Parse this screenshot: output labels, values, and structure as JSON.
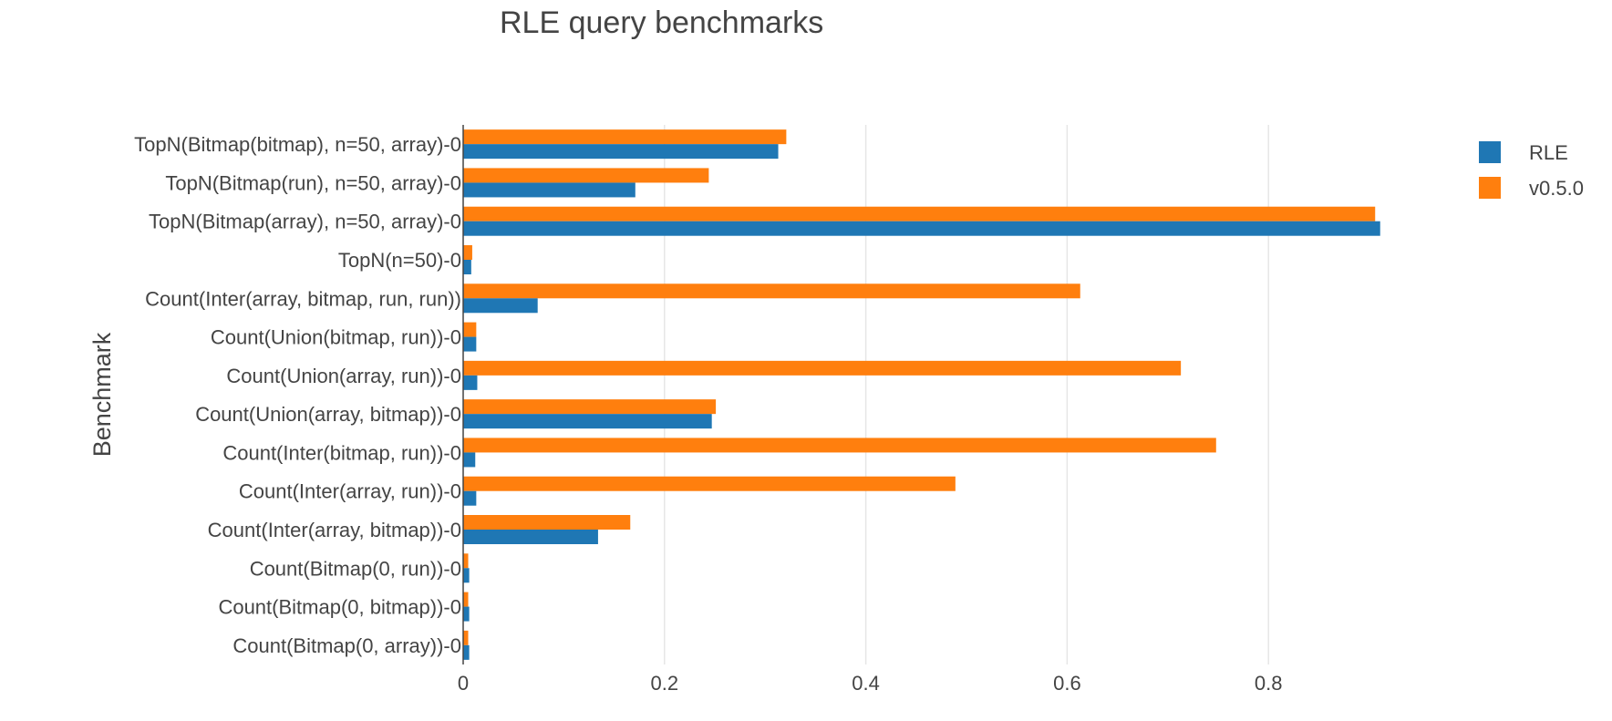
{
  "chart_data": {
    "type": "bar",
    "orientation": "horizontal",
    "title": "RLE query benchmarks",
    "xlabel": "",
    "ylabel": "Benchmark",
    "xlim": [
      0,
      0.95
    ],
    "xticks": [
      0,
      0.2,
      0.4,
      0.6,
      0.8
    ],
    "xtick_labels": [
      "0",
      "0.2",
      "0.4",
      "0.6",
      "0.8"
    ],
    "grid": "vertical",
    "legend_position": "top-right",
    "categories": [
      "TopN(Bitmap(bitmap), n=50, array)-0",
      "TopN(Bitmap(run), n=50, array)-0",
      "TopN(Bitmap(array), n=50, array)-0",
      "TopN(n=50)-0",
      "Count(Inter(array, bitmap, run, run))",
      "Count(Union(bitmap, run))-0",
      "Count(Union(array, run))-0",
      "Count(Union(array, bitmap))-0",
      "Count(Inter(bitmap, run))-0",
      "Count(Inter(array, run))-0",
      "Count(Inter(array, bitmap))-0",
      "Count(Bitmap(0, run))-0",
      "Count(Bitmap(0, bitmap))-0",
      "Count(Bitmap(0, array))-0"
    ],
    "series": [
      {
        "name": "RLE",
        "color": "#1f77b4",
        "values": [
          0.313,
          0.171,
          0.911,
          0.008,
          0.074,
          0.013,
          0.014,
          0.247,
          0.012,
          0.013,
          0.134,
          0.006,
          0.006,
          0.006
        ]
      },
      {
        "name": "v0.5.0",
        "color": "#ff7f0e",
        "values": [
          0.321,
          0.244,
          0.906,
          0.009,
          0.613,
          0.013,
          0.713,
          0.251,
          0.748,
          0.489,
          0.166,
          0.005,
          0.005,
          0.005
        ]
      }
    ]
  }
}
